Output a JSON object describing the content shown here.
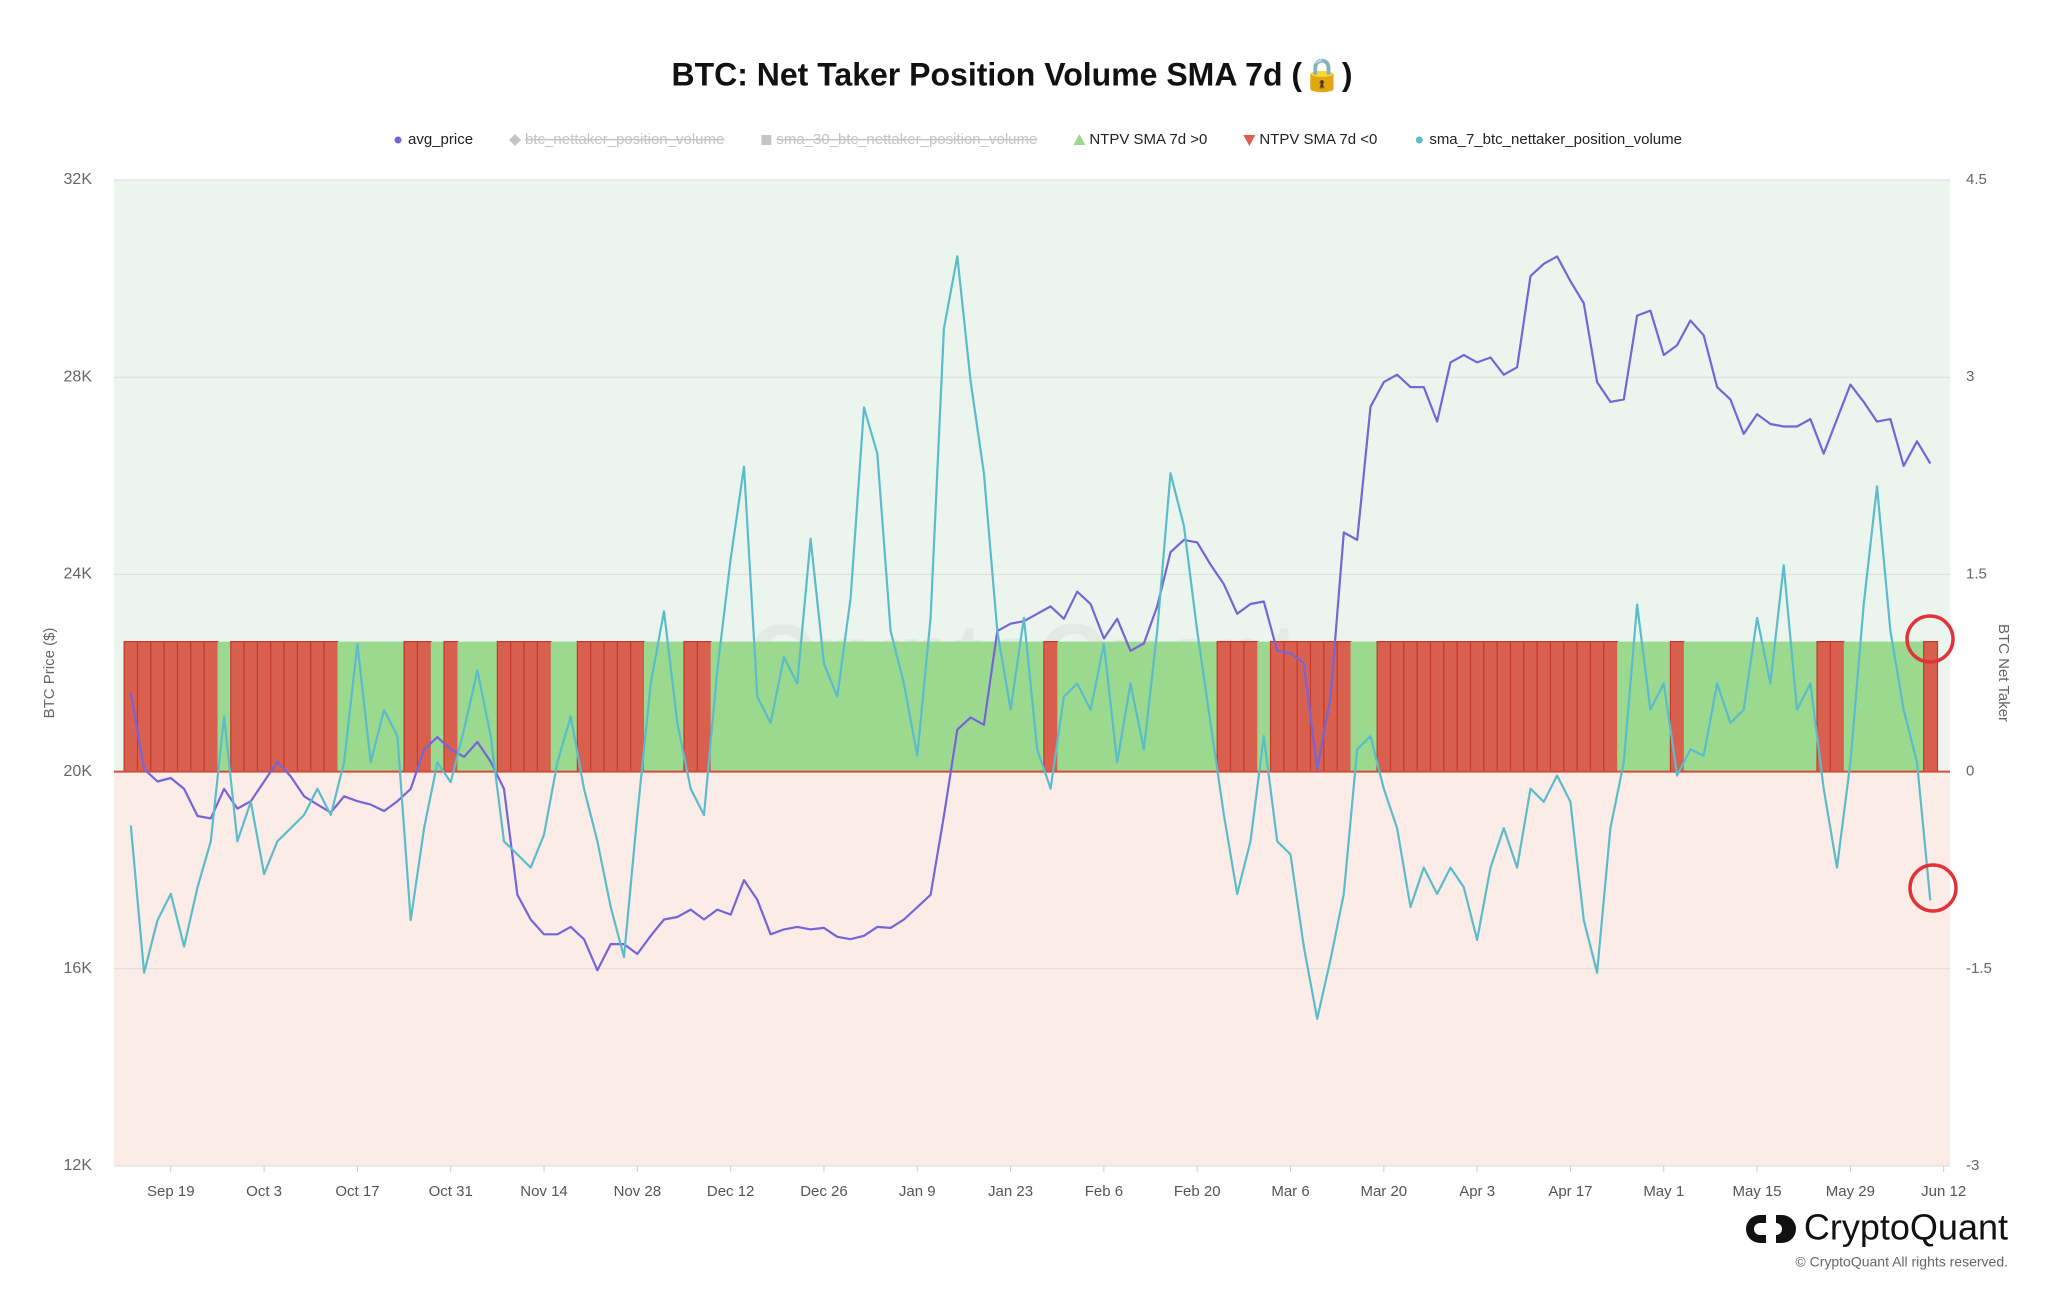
{
  "chart_data": {
    "type": "line",
    "title": "BTC: Net Taker Position Volume SMA 7d (🔒)",
    "watermark": "CryptoQuant",
    "y_label": "BTC Price ($)",
    "y2_label": "BTC Net Taker",
    "logo": "CryptoQuant",
    "copyright": "© CryptoQuant All rights reserved.",
    "x": [
      "Sep 13",
      "Sep 15",
      "Sep 17",
      "Sep 19",
      "Sep 21",
      "Sep 23",
      "Sep 25",
      "Sep 27",
      "Sep 29",
      "Oct 1",
      "Oct 3",
      "Oct 5",
      "Oct 7",
      "Oct 9",
      "Oct 11",
      "Oct 13",
      "Oct 15",
      "Oct 17",
      "Oct 19",
      "Oct 21",
      "Oct 23",
      "Oct 25",
      "Oct 27",
      "Oct 29",
      "Oct 31",
      "Nov 2",
      "Nov 4",
      "Nov 6",
      "Nov 8",
      "Nov 10",
      "Nov 12",
      "Nov 14",
      "Nov 16",
      "Nov 18",
      "Nov 20",
      "Nov 22",
      "Nov 24",
      "Nov 26",
      "Nov 28",
      "Nov 30",
      "Dec 2",
      "Dec 4",
      "Dec 6",
      "Dec 8",
      "Dec 10",
      "Dec 12",
      "Dec 14",
      "Dec 16",
      "Dec 18",
      "Dec 20",
      "Dec 22",
      "Dec 24",
      "Dec 26",
      "Dec 28",
      "Dec 30",
      "Jan 1",
      "Jan 3",
      "Jan 5",
      "Jan 7",
      "Jan 9",
      "Jan 11",
      "Jan 13",
      "Jan 15",
      "Jan 17",
      "Jan 19",
      "Jan 21",
      "Jan 23",
      "Jan 25",
      "Jan 27",
      "Jan 29",
      "Jan 31",
      "Feb 2",
      "Feb 4",
      "Feb 6",
      "Feb 8",
      "Feb 10",
      "Feb 12",
      "Feb 14",
      "Feb 16",
      "Feb 18",
      "Feb 20",
      "Feb 22",
      "Feb 24",
      "Feb 26",
      "Feb 28",
      "Mar 2",
      "Mar 4",
      "Mar 6",
      "Mar 8",
      "Mar 10",
      "Mar 12",
      "Mar 14",
      "Mar 16",
      "Mar 18",
      "Mar 20",
      "Mar 22",
      "Mar 24",
      "Mar 26",
      "Mar 28",
      "Mar 30",
      "Apr 1",
      "Apr 3",
      "Apr 5",
      "Apr 7",
      "Apr 9",
      "Apr 11",
      "Apr 13",
      "Apr 15",
      "Apr 17",
      "Apr 19",
      "Apr 21",
      "Apr 23",
      "Apr 25",
      "Apr 27",
      "Apr 29",
      "May 1",
      "May 3",
      "May 5",
      "May 7",
      "May 9",
      "May 11",
      "May 13",
      "May 15",
      "May 17",
      "May 19",
      "May 21",
      "May 23",
      "May 25",
      "May 27",
      "May 29",
      "May 31",
      "Jun 2",
      "Jun 4",
      "Jun 6",
      "Jun 8",
      "Jun 10",
      "Jun 12"
    ],
    "series": [
      {
        "name": "avg_price",
        "color": "#7565d6",
        "marker": "circle",
        "hidden": false,
        "values": [
          21600,
          20050,
          19800,
          19870,
          19650,
          19100,
          19050,
          19650,
          19250,
          19400,
          19800,
          20200,
          19900,
          19500,
          19330,
          19170,
          19500,
          19400,
          19330,
          19200,
          19400,
          19650,
          20450,
          20700,
          20450,
          20300,
          20600,
          20200,
          19650,
          17500,
          17000,
          16700,
          16700,
          16850,
          16600,
          15970,
          16500,
          16500,
          16300,
          16670,
          17000,
          17050,
          17200,
          17000,
          17200,
          17100,
          17800,
          17400,
          16700,
          16800,
          16850,
          16800,
          16830,
          16650,
          16600,
          16670,
          16850,
          16830,
          17000,
          17250,
          17500,
          19100,
          20850,
          21100,
          20950,
          22850,
          23000,
          23050,
          23200,
          23350,
          23100,
          23650,
          23400,
          22700,
          23100,
          22450,
          22600,
          23350,
          24450,
          24700,
          24650,
          24200,
          23800,
          23200,
          23400,
          23450,
          22450,
          22400,
          22200,
          20050,
          21500,
          24850,
          24700,
          27400,
          27900,
          28050,
          27800,
          27800,
          27100,
          28300,
          28450,
          28300,
          28400,
          28050,
          28200,
          30050,
          30300,
          30450,
          29950,
          29500,
          27900,
          27500,
          27550,
          29250,
          29350,
          28450,
          28650,
          29150,
          28850,
          27800,
          27550,
          26850,
          27250,
          27050,
          27000,
          27000,
          27150,
          26450,
          27150,
          27850,
          27500,
          27100,
          27150,
          26200,
          26700,
          26250,
          null
        ]
      },
      {
        "name": "btc_nettaker_position_volume",
        "color": "#b8b8b8",
        "marker": "diamond",
        "hidden": true
      },
      {
        "name": "sma_30_btc_nettaker_position_volume",
        "color": "#b8b8b8",
        "marker": "square",
        "hidden": true
      },
      {
        "name": "NTPV SMA 7d >0",
        "color": "#9bd98f",
        "marker": "triangle-up",
        "hidden": false
      },
      {
        "name": "NTPV SMA 7d <0",
        "color": "#d9604f",
        "marker": "triangle-down",
        "hidden": false
      },
      {
        "name": "sma_7_btc_nettaker_position_volume",
        "color": "#5bbccb",
        "marker": "circle",
        "hidden": false,
        "axis": "y2",
        "values": [
          -0.41,
          -1.53,
          -1.13,
          -0.93,
          -1.33,
          -0.88,
          -0.53,
          0.42,
          -0.53,
          -0.23,
          -0.78,
          -0.53,
          -0.43,
          -0.33,
          -0.13,
          -0.33,
          0.07,
          0.97,
          0.07,
          0.47,
          0.27,
          -1.13,
          -0.43,
          0.07,
          -0.08,
          0.32,
          0.77,
          0.27,
          -0.53,
          -0.63,
          -0.73,
          -0.48,
          0.07,
          0.42,
          -0.13,
          -0.53,
          -1.03,
          -1.41,
          -0.33,
          0.67,
          1.22,
          0.37,
          -0.13,
          -0.33,
          0.77,
          1.62,
          2.32,
          0.57,
          0.37,
          0.87,
          0.67,
          1.77,
          0.82,
          0.57,
          1.32,
          2.77,
          2.42,
          1.07,
          0.67,
          0.12,
          1.17,
          3.37,
          3.92,
          2.97,
          2.27,
          1.07,
          0.47,
          1.17,
          0.17,
          -0.13,
          0.57,
          0.67,
          0.47,
          0.97,
          0.07,
          0.67,
          0.17,
          1.07,
          2.27,
          1.87,
          1.07,
          0.37,
          -0.33,
          -0.93,
          -0.53,
          0.27,
          -0.53,
          -0.63,
          -1.33,
          -1.88,
          -1.43,
          -0.93,
          0.17,
          0.27,
          -0.13,
          -0.43,
          -1.03,
          -0.73,
          -0.93,
          -0.73,
          -0.88,
          -1.28,
          -0.73,
          -0.43,
          -0.73,
          -0.13,
          -0.23,
          -0.03,
          -0.23,
          -1.13,
          -1.53,
          -0.43,
          0.07,
          1.27,
          0.47,
          0.67,
          -0.03,
          0.17,
          0.12,
          0.67,
          0.37,
          0.47,
          1.17,
          0.67,
          1.57,
          0.47,
          0.67,
          -0.13,
          -0.73,
          0.07,
          1.27,
          2.17,
          1.07,
          0.47,
          0.07,
          -0.98,
          null
        ]
      }
    ],
    "ylim": [
      12000,
      32000
    ],
    "yticks": [
      {
        "value": 12000,
        "label": "12K"
      },
      {
        "value": 16000,
        "label": "16K"
      },
      {
        "value": 20000,
        "label": "20K"
      },
      {
        "value": 24000,
        "label": "24K"
      },
      {
        "value": 28000,
        "label": "28K"
      },
      {
        "value": 32000,
        "label": "32K"
      }
    ],
    "y2lim": [
      -3,
      4.5
    ],
    "y2ticks": [
      -3,
      -1.5,
      0,
      1.5,
      3,
      4.5
    ],
    "grid": true
  }
}
